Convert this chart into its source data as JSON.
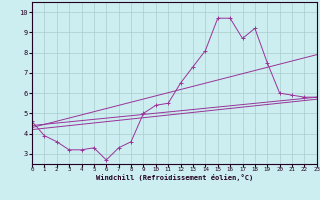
{
  "xlabel": "Windchill (Refroidissement éolien,°C)",
  "bg_color": "#cceef0",
  "grid_color": "#aacccc",
  "line_color": "#993399",
  "x_range": [
    0,
    23
  ],
  "y_range": [
    2.5,
    10.5
  ],
  "x_ticks": [
    0,
    1,
    2,
    3,
    4,
    5,
    6,
    7,
    8,
    9,
    10,
    11,
    12,
    13,
    14,
    15,
    16,
    17,
    18,
    19,
    20,
    21,
    22,
    23
  ],
  "y_ticks": [
    3,
    4,
    5,
    6,
    7,
    8,
    9,
    10
  ],
  "line1_x": [
    0,
    1,
    2,
    3,
    4,
    5,
    6,
    7,
    8,
    9,
    10,
    11,
    12,
    13,
    14,
    15,
    16,
    17,
    18,
    19,
    20,
    21,
    22,
    23
  ],
  "line1_y": [
    4.6,
    3.9,
    3.6,
    3.2,
    3.2,
    3.3,
    2.7,
    3.3,
    3.6,
    5.0,
    5.4,
    5.5,
    6.5,
    7.3,
    8.1,
    9.7,
    9.7,
    8.7,
    9.2,
    7.5,
    6.0,
    5.9,
    5.8,
    5.8
  ],
  "line2_x": [
    0,
    23
  ],
  "line2_y": [
    4.4,
    5.8
  ],
  "line3_x": [
    0,
    23
  ],
  "line3_y": [
    4.3,
    7.9
  ],
  "line4_x": [
    0,
    23
  ],
  "line4_y": [
    4.2,
    5.7
  ]
}
